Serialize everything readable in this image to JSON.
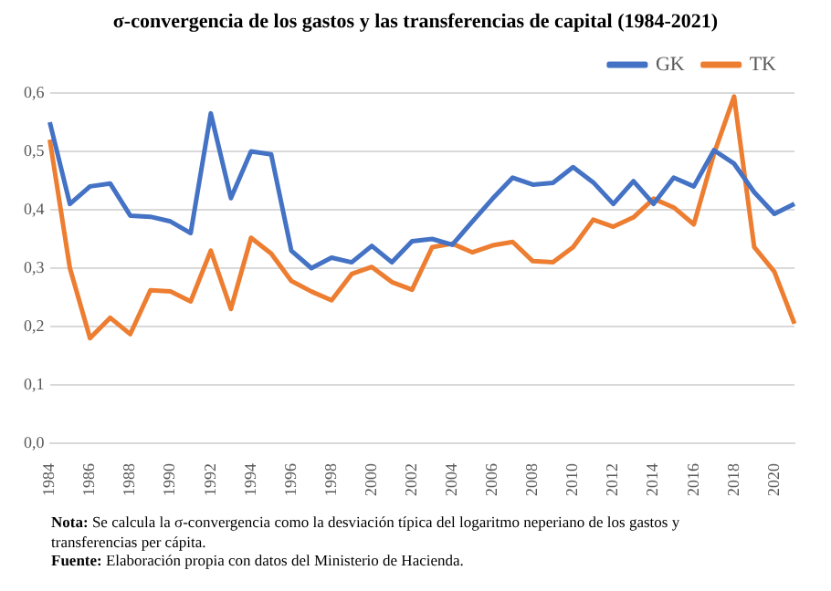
{
  "chart_data": {
    "type": "line",
    "title": "σ-convergencia de los gastos y las transferencias de capital (1984-2021)",
    "categories": [
      "1984",
      null,
      "1986",
      null,
      "1988",
      null,
      "1990",
      null,
      "1992",
      null,
      "1994",
      null,
      "1996",
      null,
      "1998",
      null,
      "2000",
      null,
      "2002",
      null,
      "2004",
      null,
      "2006",
      null,
      "2008",
      null,
      "2010",
      null,
      "2012",
      null,
      "2014",
      null,
      "2016",
      null,
      "2018",
      null,
      "2020",
      null
    ],
    "series": [
      {
        "name": "GK",
        "color": "#4472c4",
        "values": [
          0.55,
          0.41,
          0.44,
          0.445,
          0.39,
          0.388,
          0.38,
          0.36,
          0.565,
          0.42,
          0.5,
          0.495,
          0.33,
          0.3,
          0.318,
          0.31,
          0.338,
          0.31,
          0.346,
          0.35,
          0.34,
          0.38,
          0.419,
          0.455,
          0.443,
          0.446,
          0.473,
          0.447,
          0.41,
          0.449,
          0.41,
          0.455,
          0.44,
          0.502,
          0.479,
          0.43,
          0.393,
          0.41
        ]
      },
      {
        "name": "TK",
        "color": "#ed7d31",
        "values": [
          0.52,
          0.3,
          0.18,
          0.215,
          0.187,
          0.262,
          0.26,
          0.243,
          0.33,
          0.23,
          0.352,
          0.325,
          0.278,
          0.26,
          0.245,
          0.29,
          0.302,
          0.276,
          0.263,
          0.336,
          0.342,
          0.327,
          0.339,
          0.345,
          0.312,
          0.31,
          0.336,
          0.383,
          0.371,
          0.387,
          0.419,
          0.404,
          0.375,
          0.496,
          0.594,
          0.336,
          0.294,
          0.205
        ]
      }
    ],
    "ylim": [
      0,
      0.6
    ],
    "yticks": [
      {
        "value": 0,
        "label": "0,0"
      },
      {
        "value": 0.1,
        "label": "0,1"
      },
      {
        "value": 0.2,
        "label": "0,2"
      },
      {
        "value": 0.3,
        "label": "0,3"
      },
      {
        "value": 0.4,
        "label": "0,4"
      },
      {
        "value": 0.5,
        "label": "0,5"
      },
      {
        "value": 0.6,
        "label": "0,6"
      }
    ],
    "grid": "y",
    "legend": "top right",
    "marker": "none",
    "line_style": "solid",
    "annotations": [
      "Nota: Se calcula la σ-convergencia como la desviación típica del logaritmo neperiano de los gastos y transferencias per cápita.",
      "Fuente: Elaboración propia con datos del Ministerio de Hacienda."
    ]
  }
}
